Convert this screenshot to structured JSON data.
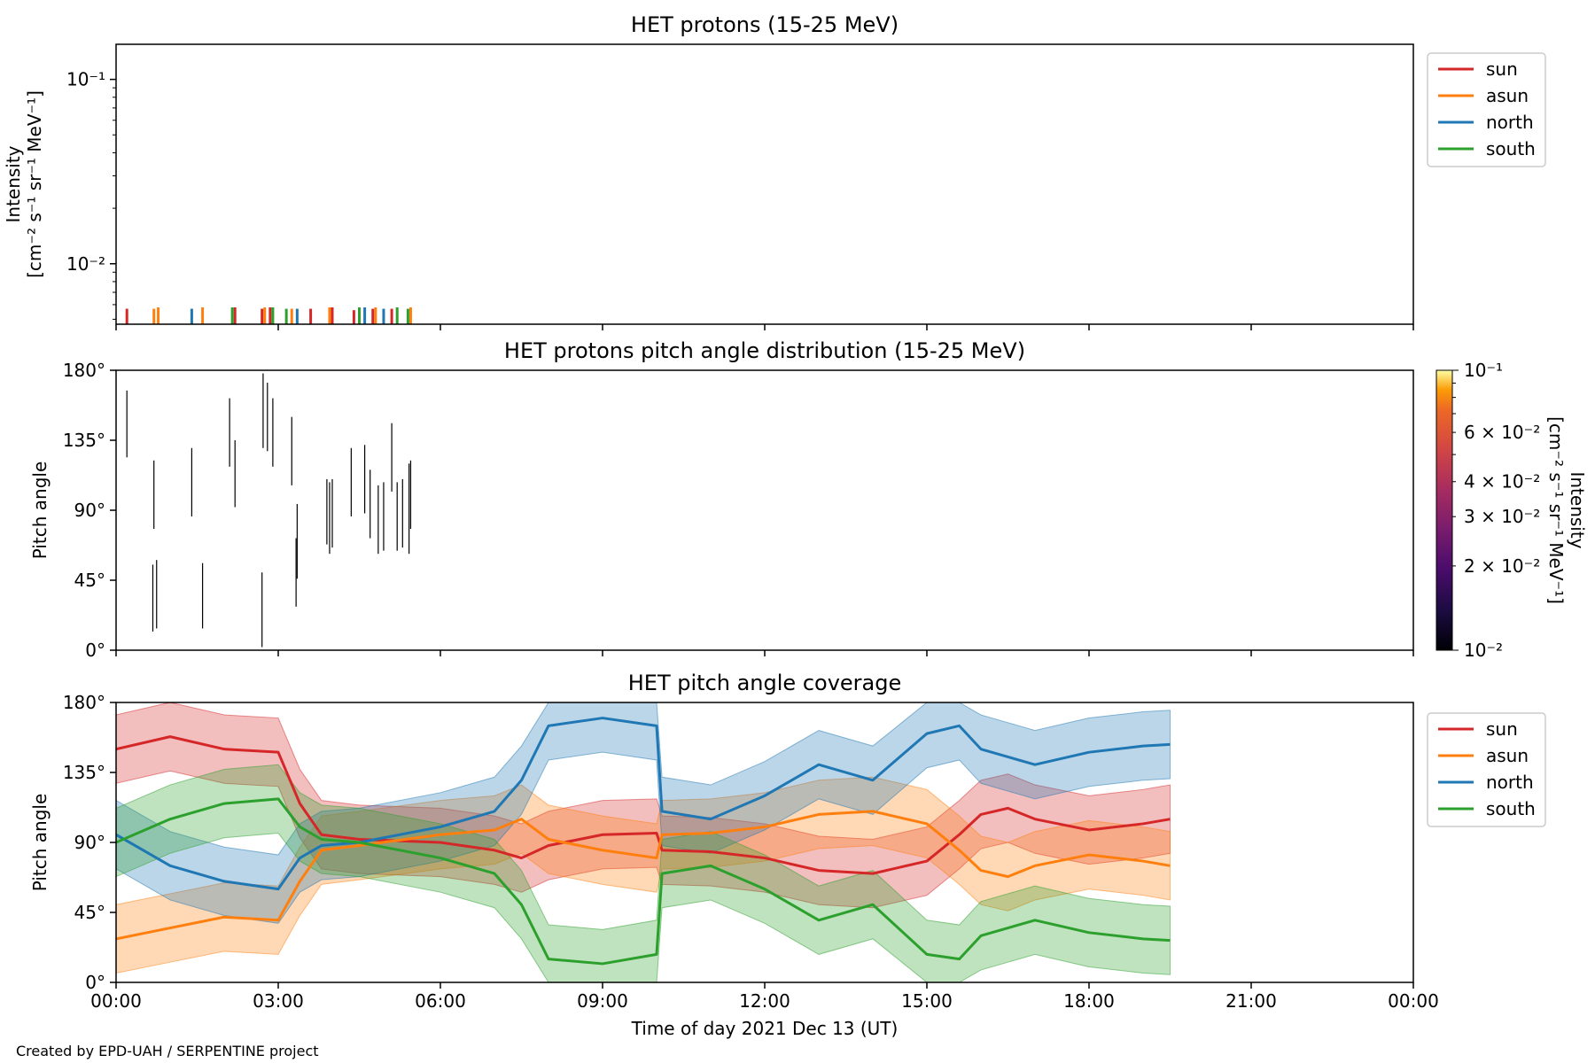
{
  "footer": {
    "credit": "Created by EPD-UAH / SERPENTINE project"
  },
  "colors": {
    "sun": "#d62728",
    "asun": "#ff7f0e",
    "north": "#1f77b4",
    "south": "#2ca02c"
  },
  "chart_data": [
    {
      "type": "line",
      "title": "HET protons (15-25 MeV)",
      "ylabel_line1": "Intensity",
      "ylabel_line2": "[cm⁻² s⁻¹ sr⁻¹ MeV⁻¹]",
      "yscale": "log",
      "ylim": [
        0.0047,
        0.155
      ],
      "yticks": [
        {
          "label": "10⁻¹",
          "value": 0.1
        },
        {
          "label": "10⁻²",
          "value": 0.01
        }
      ],
      "xlim_hours": [
        0,
        24
      ],
      "legend": {
        "placement": "outside-right",
        "entries": [
          "sun",
          "asun",
          "north",
          "south"
        ]
      },
      "series": [
        {
          "name": "sun",
          "spikes": [
            {
              "x": 0.2,
              "y": 0.0057
            },
            {
              "x": 2.2,
              "y": 0.0058
            },
            {
              "x": 2.7,
              "y": 0.0057
            },
            {
              "x": 2.85,
              "y": 0.0058
            },
            {
              "x": 3.6,
              "y": 0.0057
            },
            {
              "x": 4.0,
              "y": 0.0058
            },
            {
              "x": 4.4,
              "y": 0.0056
            },
            {
              "x": 4.75,
              "y": 0.0057
            },
            {
              "x": 5.1,
              "y": 0.0057
            }
          ]
        },
        {
          "name": "asun",
          "spikes": [
            {
              "x": 0.7,
              "y": 0.0057
            },
            {
              "x": 0.78,
              "y": 0.0058
            },
            {
              "x": 1.6,
              "y": 0.0058
            },
            {
              "x": 2.75,
              "y": 0.0058
            },
            {
              "x": 3.25,
              "y": 0.0057
            },
            {
              "x": 3.95,
              "y": 0.0058
            },
            {
              "x": 4.8,
              "y": 0.0058
            },
            {
              "x": 5.45,
              "y": 0.0058
            }
          ]
        },
        {
          "name": "north",
          "spikes": [
            {
              "x": 1.4,
              "y": 0.0057
            },
            {
              "x": 3.35,
              "y": 0.0057
            },
            {
              "x": 4.6,
              "y": 0.0058
            },
            {
              "x": 4.95,
              "y": 0.0057
            }
          ]
        },
        {
          "name": "south",
          "spikes": [
            {
              "x": 2.15,
              "y": 0.0058
            },
            {
              "x": 2.9,
              "y": 0.0058
            },
            {
              "x": 3.15,
              "y": 0.0057
            },
            {
              "x": 4.5,
              "y": 0.0058
            },
            {
              "x": 5.2,
              "y": 0.0058
            },
            {
              "x": 5.4,
              "y": 0.0057
            }
          ]
        }
      ]
    },
    {
      "type": "heatmap",
      "title": "HET protons pitch angle distribution (15-25 MeV)",
      "ylabel": "Pitch angle",
      "ylim": [
        0,
        180
      ],
      "yticks": [
        "0°",
        "45°",
        "90°",
        "135°",
        "180°"
      ],
      "xlim_hours": [
        0,
        24
      ],
      "colorbar": {
        "label_line1": "Intensity",
        "label_line2": "[cm⁻² s⁻¹ sr⁻¹ MeV⁻¹]",
        "scale": "log",
        "range": [
          0.01,
          0.1
        ],
        "ticks": [
          {
            "label": "10⁻¹",
            "value": 0.1
          },
          {
            "label": "6 × 10⁻²",
            "value": 0.06
          },
          {
            "label": "4 × 10⁻²",
            "value": 0.04
          },
          {
            "label": "3 × 10⁻²",
            "value": 0.03
          },
          {
            "label": "2 × 10⁻²",
            "value": 0.02
          },
          {
            "label": "10⁻²",
            "value": 0.01
          }
        ]
      },
      "segments": [
        {
          "x": 0.2,
          "y0": 124,
          "y1": 167
        },
        {
          "x": 0.7,
          "y0": 78,
          "y1": 122
        },
        {
          "x": 0.68,
          "y0": 12,
          "y1": 55
        },
        {
          "x": 0.75,
          "y0": 14,
          "y1": 58
        },
        {
          "x": 1.4,
          "y0": 86,
          "y1": 130
        },
        {
          "x": 1.6,
          "y0": 14,
          "y1": 56
        },
        {
          "x": 2.1,
          "y0": 118,
          "y1": 162
        },
        {
          "x": 2.2,
          "y0": 92,
          "y1": 135
        },
        {
          "x": 2.7,
          "y0": 2,
          "y1": 50
        },
        {
          "x": 2.72,
          "y0": 130,
          "y1": 178
        },
        {
          "x": 2.8,
          "y0": 128,
          "y1": 172
        },
        {
          "x": 2.9,
          "y0": 118,
          "y1": 162
        },
        {
          "x": 3.25,
          "y0": 106,
          "y1": 150
        },
        {
          "x": 3.33,
          "y0": 28,
          "y1": 72
        },
        {
          "x": 3.35,
          "y0": 46,
          "y1": 94
        },
        {
          "x": 3.9,
          "y0": 68,
          "y1": 110
        },
        {
          "x": 3.95,
          "y0": 62,
          "y1": 108
        },
        {
          "x": 4.0,
          "y0": 66,
          "y1": 110
        },
        {
          "x": 4.35,
          "y0": 86,
          "y1": 130
        },
        {
          "x": 4.6,
          "y0": 88,
          "y1": 132
        },
        {
          "x": 4.7,
          "y0": 72,
          "y1": 116
        },
        {
          "x": 4.85,
          "y0": 62,
          "y1": 106
        },
        {
          "x": 4.95,
          "y0": 64,
          "y1": 108
        },
        {
          "x": 5.1,
          "y0": 102,
          "y1": 146
        },
        {
          "x": 5.2,
          "y0": 64,
          "y1": 108
        },
        {
          "x": 5.3,
          "y0": 66,
          "y1": 110
        },
        {
          "x": 5.42,
          "y0": 62,
          "y1": 120
        },
        {
          "x": 5.45,
          "y0": 78,
          "y1": 122
        }
      ]
    },
    {
      "type": "line",
      "title": "HET pitch angle coverage",
      "ylabel": "Pitch angle",
      "xlabel": "Time of day 2021 Dec 13 (UT)",
      "ylim": [
        0,
        180
      ],
      "yticks": [
        "0°",
        "45°",
        "90°",
        "135°",
        "180°"
      ],
      "xticks": [
        "00:00",
        "03:00",
        "06:00",
        "09:00",
        "12:00",
        "15:00",
        "18:00",
        "21:00",
        "00:00"
      ],
      "xlim_hours": [
        0,
        24
      ],
      "legend": {
        "placement": "outside-right",
        "entries": [
          "sun",
          "asun",
          "north",
          "south"
        ]
      },
      "band_halfwidth_deg": 22,
      "series": [
        {
          "name": "sun",
          "points": [
            [
              0,
              150
            ],
            [
              1,
              158
            ],
            [
              2,
              150
            ],
            [
              3,
              148
            ],
            [
              3.4,
              115
            ],
            [
              3.8,
              95
            ],
            [
              4.5,
              92
            ],
            [
              6,
              90
            ],
            [
              7,
              85
            ],
            [
              7.5,
              80
            ],
            [
              8,
              88
            ],
            [
              9,
              95
            ],
            [
              10,
              96
            ],
            [
              10.1,
              85
            ],
            [
              11,
              84
            ],
            [
              12,
              80
            ],
            [
              13,
              72
            ],
            [
              14,
              70
            ],
            [
              15,
              78
            ],
            [
              15.6,
              95
            ],
            [
              16,
              108
            ],
            [
              16.5,
              112
            ],
            [
              17,
              105
            ],
            [
              18,
              98
            ],
            [
              19,
              102
            ],
            [
              19.5,
              105
            ]
          ]
        },
        {
          "name": "asun",
          "points": [
            [
              0,
              28
            ],
            [
              1,
              35
            ],
            [
              2,
              42
            ],
            [
              3,
              40
            ],
            [
              3.4,
              65
            ],
            [
              3.8,
              85
            ],
            [
              4.5,
              88
            ],
            [
              6,
              95
            ],
            [
              7,
              98
            ],
            [
              7.5,
              105
            ],
            [
              8,
              92
            ],
            [
              9,
              85
            ],
            [
              10,
              80
            ],
            [
              10.1,
              95
            ],
            [
              11,
              96
            ],
            [
              12,
              100
            ],
            [
              13,
              108
            ],
            [
              14,
              110
            ],
            [
              15,
              102
            ],
            [
              15.6,
              85
            ],
            [
              16,
              72
            ],
            [
              16.5,
              68
            ],
            [
              17,
              75
            ],
            [
              18,
              82
            ],
            [
              19,
              78
            ],
            [
              19.5,
              75
            ]
          ]
        },
        {
          "name": "north",
          "points": [
            [
              0,
              95
            ],
            [
              1,
              75
            ],
            [
              2,
              65
            ],
            [
              3,
              60
            ],
            [
              3.4,
              80
            ],
            [
              3.8,
              88
            ],
            [
              4.5,
              90
            ],
            [
              6,
              100
            ],
            [
              7,
              110
            ],
            [
              7.5,
              130
            ],
            [
              8,
              165
            ],
            [
              9,
              170
            ],
            [
              10,
              165
            ],
            [
              10.1,
              110
            ],
            [
              11,
              105
            ],
            [
              12,
              120
            ],
            [
              13,
              140
            ],
            [
              14,
              130
            ],
            [
              15,
              160
            ],
            [
              15.6,
              165
            ],
            [
              16,
              150
            ],
            [
              16.5,
              145
            ],
            [
              17,
              140
            ],
            [
              18,
              148
            ],
            [
              19,
              152
            ],
            [
              19.5,
              153
            ]
          ]
        },
        {
          "name": "south",
          "points": [
            [
              0,
              90
            ],
            [
              1,
              105
            ],
            [
              2,
              115
            ],
            [
              3,
              118
            ],
            [
              3.4,
              100
            ],
            [
              3.8,
              92
            ],
            [
              4.5,
              90
            ],
            [
              6,
              80
            ],
            [
              7,
              70
            ],
            [
              7.5,
              50
            ],
            [
              8,
              15
            ],
            [
              9,
              12
            ],
            [
              10,
              18
            ],
            [
              10.1,
              70
            ],
            [
              11,
              75
            ],
            [
              12,
              60
            ],
            [
              13,
              40
            ],
            [
              14,
              50
            ],
            [
              15,
              18
            ],
            [
              15.6,
              15
            ],
            [
              16,
              30
            ],
            [
              16.5,
              35
            ],
            [
              17,
              40
            ],
            [
              18,
              32
            ],
            [
              19,
              28
            ],
            [
              19.5,
              27
            ]
          ]
        }
      ]
    }
  ]
}
